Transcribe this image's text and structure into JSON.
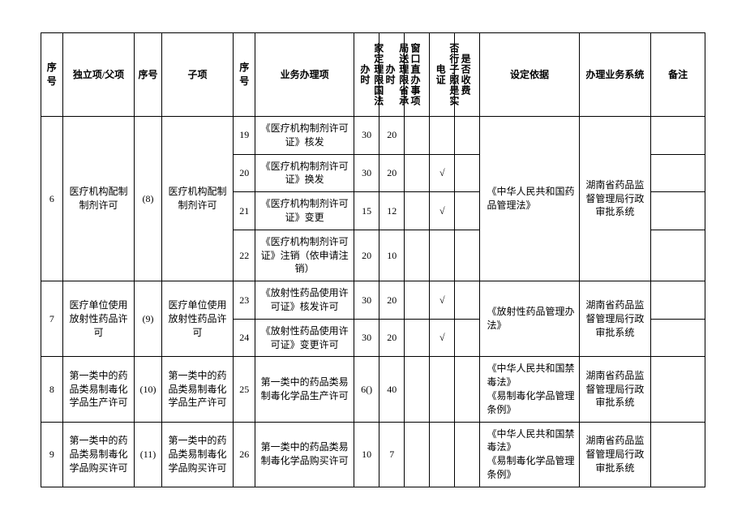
{
  "headers": {
    "idx": "序号",
    "parent": "独立项/父项",
    "idx2": "序号",
    "sub": "子项",
    "idx3": "序号",
    "item": "业务办理项",
    "time1": "家定理限国法办时",
    "time2": "局送理限省承办时",
    "window": "窗口直办事项",
    "elec": "否行子照是实电证",
    "fee": "是否收费",
    "basis": "设定依据",
    "system": "办理业务系统",
    "note": "备注"
  },
  "groups": [
    {
      "idx": "6",
      "parent": "医疗机构配制制剂许可",
      "idx2": "(8)",
      "sub": "医疗机构配制制剂许可",
      "basis": "《中华人民共和国药品管理法》",
      "system": "湖南省药品监督管理局行政审批系统",
      "rows": [
        {
          "idx3": "19",
          "item": "《医疗机构制剂许可证》核发",
          "t1": "30",
          "t2": "20",
          "win": "",
          "elec": "",
          "fee": ""
        },
        {
          "idx3": "20",
          "item": "《医疗机构制剂许可证》换发",
          "t1": "30",
          "t2": "20",
          "win": "",
          "elec": "√",
          "fee": ""
        },
        {
          "idx3": "21",
          "item": "《医疗机构制剂许可证》变更",
          "t1": "15",
          "t2": "12",
          "win": "",
          "elec": "√",
          "fee": ""
        },
        {
          "idx3": "22",
          "item": "《医疗机构制剂许可证》注销（依申请注销）",
          "t1": "20",
          "t2": "10",
          "win": "",
          "elec": "",
          "fee": ""
        }
      ]
    },
    {
      "idx": "7",
      "parent": "医疗单位使用放射性药品许可",
      "idx2": "(9)",
      "sub": "医疗单位使用放射性药品许可",
      "basis": "《放射性药品管理办法》",
      "system": "湖南省药品监督管理局行政审批系统",
      "rows": [
        {
          "idx3": "23",
          "item": "《放射性药品使用许可证》核发许可",
          "t1": "30",
          "t2": "20",
          "win": "",
          "elec": "√",
          "fee": ""
        },
        {
          "idx3": "24",
          "item": "《放射性药品使用许可证》变更许可",
          "t1": "30",
          "t2": "20",
          "win": "",
          "elec": "√",
          "fee": ""
        }
      ]
    },
    {
      "idx": "8",
      "parent": "第一类中的药品类易制毒化学品生产许可",
      "idx2": "(10)",
      "sub": "第一类中的药品类易制毒化学品生产许可",
      "basis": "《中华人民共和国禁毒法》\n《易制毒化学品管理条例》",
      "system": "湖南省药品监督管理局行政审批系统",
      "rows": [
        {
          "idx3": "25",
          "item": "第一类中的药品类易制毒化学品生产许可",
          "t1": "6()",
          "t2": "40",
          "win": "",
          "elec": "",
          "fee": ""
        }
      ]
    },
    {
      "idx": "9",
      "parent": "第一类中的药品类易制毒化学品购买许可",
      "idx2": "(11)",
      "sub": "第一类中的药品类易制毒化学品购买许可",
      "basis": "《中华人民共和国禁毒法》\n《易制毒化学品管理条例》",
      "system": "湖南省药品监督管理局行政审批系统",
      "rows": [
        {
          "idx3": "26",
          "item": "第一类中的药品类易制毒化学品购买许可",
          "t1": "10",
          "t2": "7",
          "win": "",
          "elec": "",
          "fee": ""
        }
      ]
    }
  ]
}
